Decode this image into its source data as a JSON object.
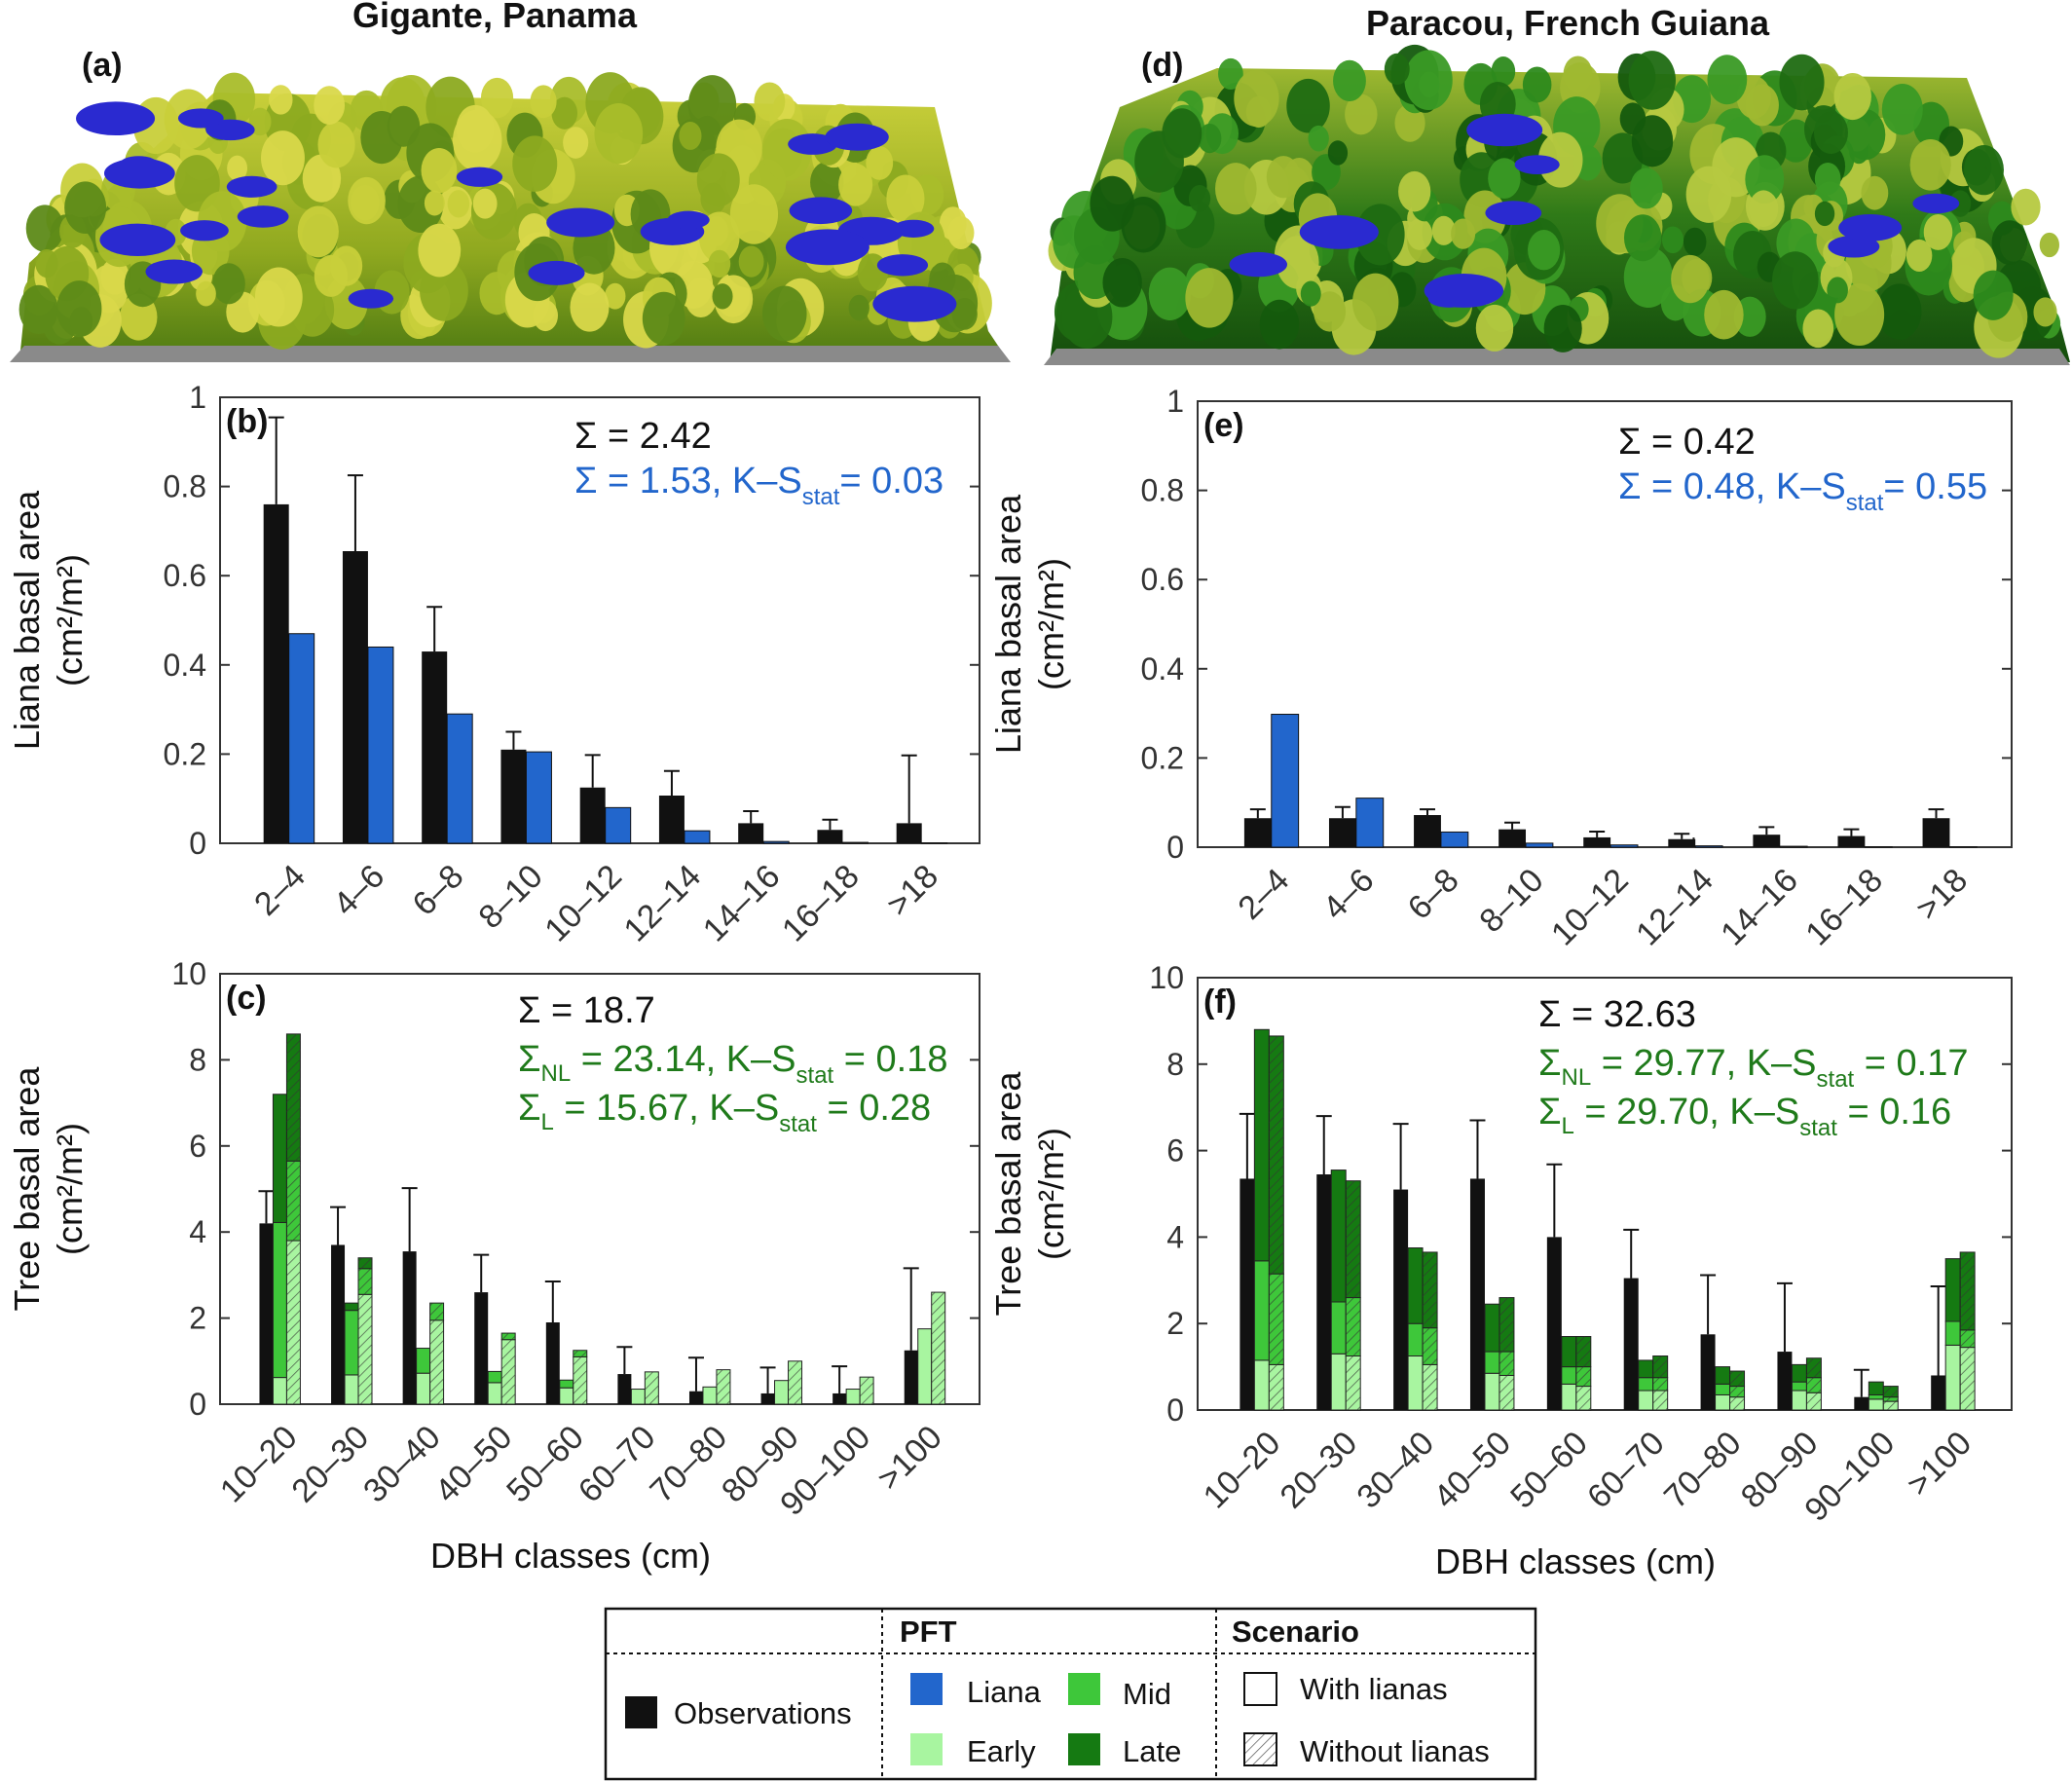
{
  "titles": {
    "left": "Gigante, Panama",
    "right": "Paracou, French Guiana"
  },
  "colors": {
    "observations": "#111111",
    "liana": "#2266cc",
    "early": "#a8f5a0",
    "mid": "#3ec73a",
    "late": "#157a12",
    "sum_obs": "#111111",
    "sum_liana": "#2266cc",
    "sum_tree": "#1f7a1a"
  },
  "legend": {
    "observations": "Observations",
    "pft_header": "PFT",
    "scenario_header": "Scenario",
    "liana": "Liana",
    "mid": "Mid",
    "early": "Early",
    "late": "Late",
    "with_lianas": "With lianas",
    "without_lianas": "Without lianas"
  },
  "chart_data": [
    {
      "id": "a",
      "type": "other",
      "label": "(a)",
      "description_visible": "3D forest canopy rendering"
    },
    {
      "id": "d",
      "type": "other",
      "label": "(d)",
      "description_visible": "3D forest canopy rendering"
    },
    {
      "id": "b",
      "type": "bar",
      "label": "(b)",
      "ylabel_line1": "Liana basal area",
      "ylabel_line2": "(cm²/m²)",
      "xlabel": "",
      "ylim": [
        0,
        1
      ],
      "yticks": [
        "0",
        "0.2",
        "0.4",
        "0.6",
        "0.8",
        "1"
      ],
      "categories": [
        "2–4",
        "4–6",
        "6–8",
        "8–10",
        "10–12",
        "12–14",
        "14–16",
        "16–18",
        ">18"
      ],
      "observations": [
        0.76,
        0.655,
        0.43,
        0.21,
        0.125,
        0.107,
        0.045,
        0.03,
        0.045
      ],
      "obs_error": [
        0.955,
        0.825,
        0.53,
        0.25,
        0.198,
        0.162,
        0.072,
        0.053,
        0.197
      ],
      "liana": [
        0.47,
        0.44,
        0.29,
        0.205,
        0.08,
        0.028,
        0.004,
        0.002,
        0.001
      ],
      "sums": [
        {
          "text": "Σ = 2.42",
          "color": "sum_obs"
        },
        {
          "text": "Σ = 1.53, K–S",
          "sub": "stat",
          "after": "= 0.03",
          "color": "sum_liana"
        }
      ]
    },
    {
      "id": "e",
      "type": "bar",
      "label": "(e)",
      "ylabel_line1": "Liana basal area",
      "ylabel_line2": "(cm²/m²)",
      "xlabel": "",
      "ylim": [
        0,
        1
      ],
      "yticks": [
        "0",
        "0.2",
        "0.4",
        "0.6",
        "0.8",
        "1"
      ],
      "categories": [
        "2–4",
        "4–6",
        "6–8",
        "8–10",
        "10–12",
        "12–14",
        "14–16",
        "16–18",
        ">18"
      ],
      "observations": [
        0.065,
        0.065,
        0.072,
        0.04,
        0.022,
        0.018,
        0.028,
        0.025,
        0.065
      ],
      "obs_error": [
        0.085,
        0.09,
        0.085,
        0.055,
        0.035,
        0.03,
        0.045,
        0.04,
        0.085
      ],
      "liana": [
        0.298,
        0.11,
        0.034,
        0.009,
        0.005,
        0.003,
        0.002,
        0.001,
        0.001
      ],
      "sums": [
        {
          "text": "Σ = 0.42",
          "color": "sum_obs"
        },
        {
          "text": "Σ = 0.48, K–S",
          "sub": "stat",
          "after": "= 0.55",
          "color": "sum_liana"
        }
      ]
    },
    {
      "id": "c",
      "type": "bar",
      "label": "(c)",
      "ylabel_line1": "Tree basal area",
      "ylabel_line2": "(cm²/m²)",
      "xlabel": "DBH classes (cm)",
      "ylim": [
        0,
        10
      ],
      "yticks": [
        "0",
        "2",
        "4",
        "6",
        "8",
        "10"
      ],
      "categories": [
        "10–20",
        "20–30",
        "30–40",
        "40–50",
        "50–60",
        "60–70",
        "70–80",
        "80–90",
        "90–100",
        ">100"
      ],
      "observations": [
        4.2,
        3.7,
        3.55,
        2.6,
        1.9,
        0.7,
        0.3,
        0.25,
        0.25,
        1.25
      ],
      "obs_error": [
        4.95,
        4.58,
        5.02,
        3.47,
        2.85,
        1.33,
        1.08,
        0.85,
        0.88,
        3.16
      ],
      "with_lianas_stack": {
        "early": [
          0.62,
          0.68,
          0.72,
          0.5,
          0.38,
          0.35,
          0.4,
          0.55,
          0.35,
          1.75
        ],
        "mid": [
          3.6,
          1.5,
          0.58,
          0.26,
          0.18,
          0.0,
          0.0,
          0.0,
          0.0,
          0.0
        ],
        "late": [
          2.98,
          0.17,
          0.0,
          0.0,
          0.0,
          0.0,
          0.0,
          0.0,
          0.0,
          0.0
        ]
      },
      "without_lianas_stack": {
        "early": [
          3.8,
          2.55,
          1.95,
          1.5,
          1.1,
          0.75,
          0.8,
          1.0,
          0.63,
          2.6
        ],
        "mid": [
          1.85,
          0.6,
          0.4,
          0.15,
          0.15,
          0.0,
          0.0,
          0.0,
          0.0,
          0.0
        ],
        "late": [
          2.95,
          0.25,
          0.0,
          0.0,
          0.0,
          0.0,
          0.0,
          0.0,
          0.0,
          0.0
        ]
      },
      "sums": [
        {
          "text": "Σ = 18.7",
          "color": "sum_obs"
        },
        {
          "text": "Σ",
          "sub1": "NL",
          "mid": " = 23.14, K–S",
          "sub": "stat",
          "after": " = 0.18",
          "color": "sum_tree"
        },
        {
          "text": "Σ",
          "sub1": "L",
          "mid": " = 15.67, K–S",
          "sub": "stat",
          "after": " = 0.28",
          "color": "sum_tree"
        }
      ]
    },
    {
      "id": "f",
      "type": "bar",
      "label": "(f)",
      "ylabel_line1": "Tree basal area",
      "ylabel_line2": "(cm²/m²)",
      "xlabel": "DBH classes (cm)",
      "ylim": [
        0,
        10
      ],
      "yticks": [
        "0",
        "2",
        "4",
        "6",
        "8",
        "10"
      ],
      "categories": [
        "10–20",
        "20–30",
        "30–40",
        "40–50",
        "50–60",
        "60–70",
        "70–80",
        "80–90",
        "90–100",
        ">100"
      ],
      "observations": [
        5.35,
        5.45,
        5.1,
        5.35,
        4.0,
        3.05,
        1.75,
        1.35,
        0.3,
        0.8
      ],
      "obs_error": [
        6.85,
        6.8,
        6.62,
        6.7,
        5.68,
        4.17,
        3.12,
        2.93,
        0.93,
        2.86
      ],
      "with_lianas_stack": {
        "early": [
          1.15,
          1.3,
          1.25,
          0.85,
          0.6,
          0.45,
          0.35,
          0.45,
          0.25,
          1.5
        ],
        "mid": [
          2.3,
          1.2,
          0.75,
          0.5,
          0.4,
          0.3,
          0.25,
          0.2,
          0.1,
          0.55
        ],
        "late": [
          5.35,
          3.05,
          1.75,
          1.1,
          0.7,
          0.4,
          0.4,
          0.4,
          0.3,
          1.45
        ]
      },
      "without_lianas_stack": {
        "early": [
          1.05,
          1.25,
          1.05,
          0.8,
          0.55,
          0.45,
          0.3,
          0.4,
          0.2,
          1.45
        ],
        "mid": [
          2.1,
          1.35,
          0.85,
          0.55,
          0.45,
          0.3,
          0.25,
          0.35,
          0.1,
          0.4
        ],
        "late": [
          5.5,
          2.7,
          1.75,
          1.25,
          0.7,
          0.5,
          0.35,
          0.45,
          0.25,
          1.8
        ]
      },
      "sums": [
        {
          "text": "Σ = 32.63",
          "color": "sum_obs"
        },
        {
          "text": "Σ",
          "sub1": "NL",
          "mid": " = 29.77, K–S",
          "sub": "stat",
          "after": " = 0.17",
          "color": "sum_tree"
        },
        {
          "text": "Σ",
          "sub1": "L",
          "mid": " = 29.70, K–S",
          "sub": "stat",
          "after": " = 0.16",
          "color": "sum_tree"
        }
      ]
    }
  ]
}
